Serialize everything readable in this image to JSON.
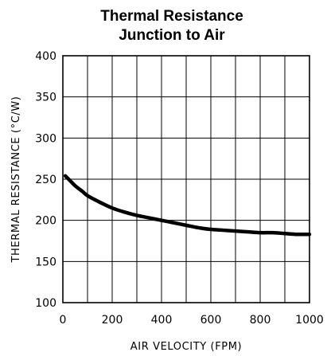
{
  "chart_data": {
    "type": "line",
    "title_line1": "Thermal Resistance",
    "title_line2": "Junction to Air",
    "xlabel": "AIR VELOCITY (FPM)",
    "ylabel": "THERMAL RESISTANCE (°C/W)",
    "xlim": [
      0,
      1000
    ],
    "ylim": [
      100,
      400
    ],
    "x_ticks": [
      0,
      200,
      400,
      600,
      800,
      1000
    ],
    "y_ticks": [
      100,
      150,
      200,
      250,
      300,
      350,
      400
    ],
    "x_gridlines": [
      0,
      100,
      200,
      300,
      400,
      500,
      600,
      700,
      800,
      900,
      1000
    ],
    "y_gridlines": [
      100,
      150,
      200,
      250,
      300,
      350,
      400
    ],
    "grid": true,
    "series": [
      {
        "x": [
          10,
          30,
          50,
          80,
          100,
          150,
          200,
          250,
          300,
          350,
          400,
          450,
          500,
          550,
          600,
          650,
          700,
          750,
          800,
          850,
          900,
          950,
          1000
        ],
        "y": [
          254,
          248,
          242,
          235,
          230,
          222,
          215,
          210,
          206,
          203,
          200,
          197,
          194,
          191,
          189,
          188,
          187,
          186,
          185,
          185,
          184,
          183,
          183
        ]
      }
    ]
  }
}
